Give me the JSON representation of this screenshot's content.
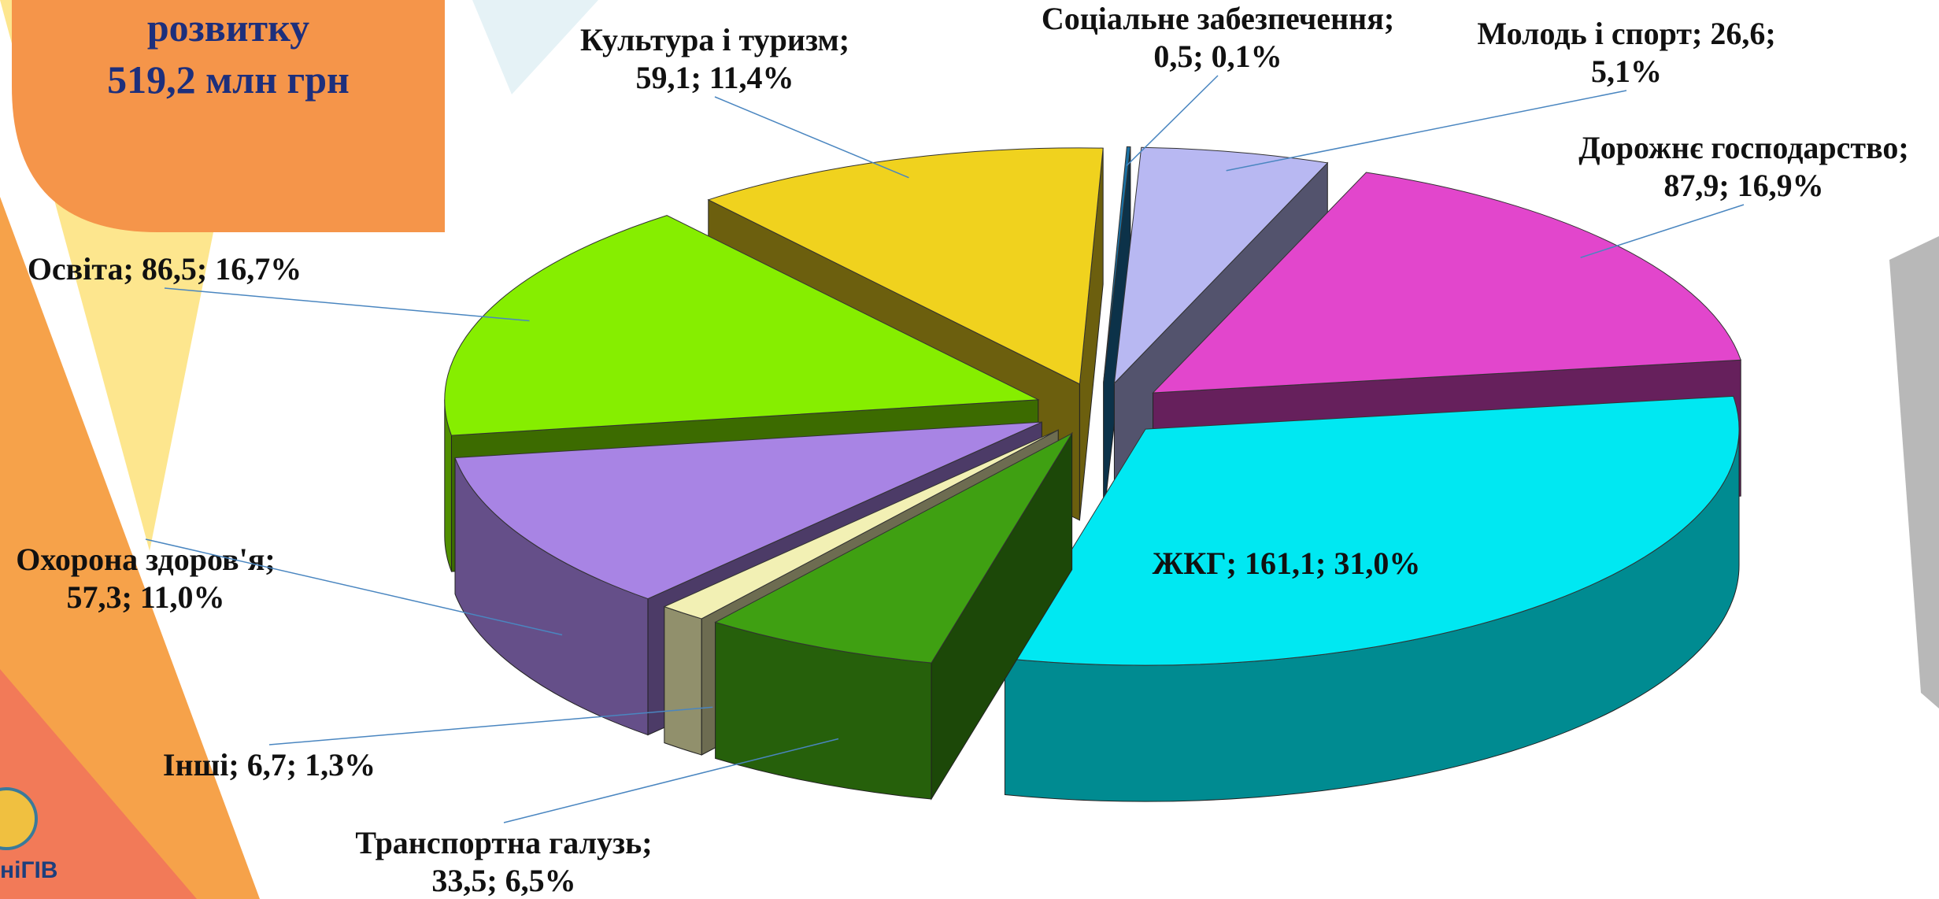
{
  "chart_data": {
    "type": "pie3d",
    "title": "розвитку",
    "subtitle": "519,2 млн грн",
    "categories": [
      "ЖКГ",
      "Транспортна галузь",
      "Інші",
      "Охорона здоров'я",
      "Освіта",
      "Культура і туризм",
      "Соціальне забезпечення",
      "Молодь і спорт",
      "Дорожнє господарство"
    ],
    "values": [
      161.1,
      33.5,
      6.7,
      57.3,
      86.5,
      59.1,
      0.5,
      26.6,
      87.9
    ],
    "value_labels": [
      "161,1",
      "33,5",
      "6,7",
      "57,3",
      "86,5",
      "59,1",
      "0,5",
      "26,6",
      "87,9"
    ],
    "percents": [
      31.0,
      6.5,
      1.3,
      11.0,
      16.7,
      11.4,
      0.1,
      5.1,
      16.9
    ],
    "percent_labels": [
      "31,0%",
      "6,5%",
      "1,3%",
      "11,0%",
      "16,7%",
      "11,4%",
      "0,1%",
      "5,1%",
      "16,9%"
    ],
    "label_separator": "; ",
    "colors": [
      "#00e8f2",
      "#3fa012",
      "#f2f0b4",
      "#a884e4",
      "#86ee00",
      "#f0d21e",
      "#1a70a2",
      "#b8b8f2",
      "#e246cc"
    ],
    "logo_text": "ніГІВ"
  }
}
